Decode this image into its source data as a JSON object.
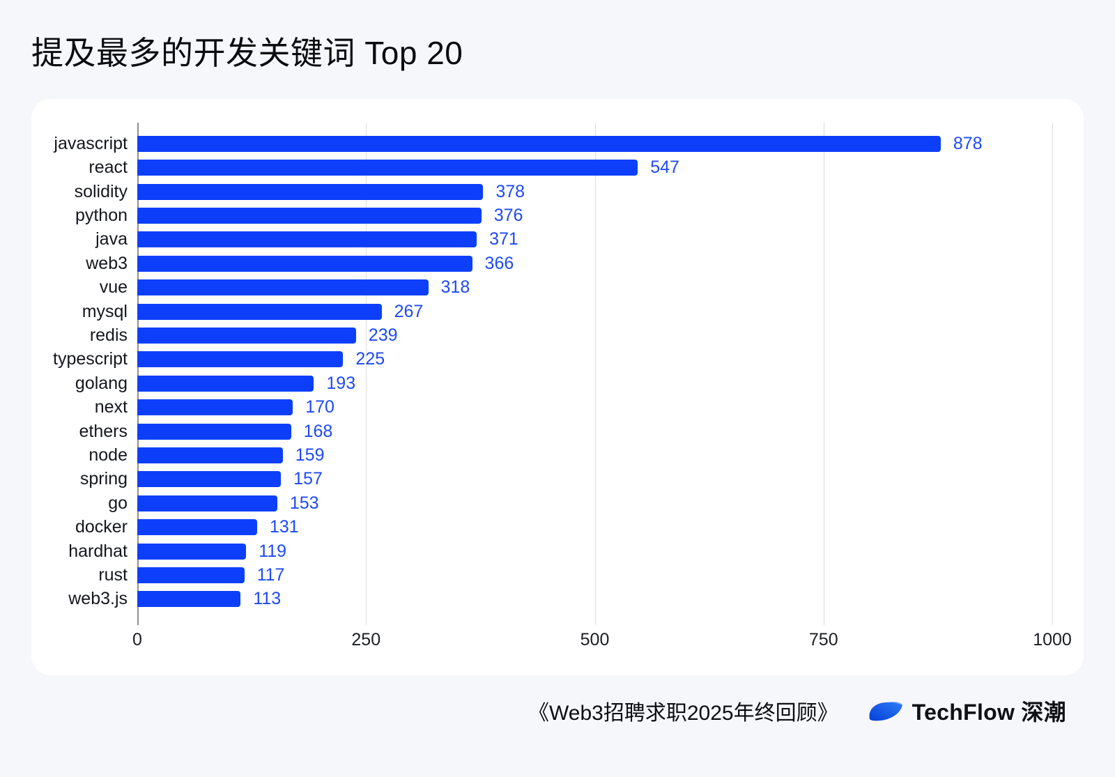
{
  "title": "提及最多的开发关键词 Top 20",
  "chart_data": {
    "type": "bar",
    "orientation": "horizontal",
    "title": "提及最多的开发关键词 Top 20",
    "categories": [
      "javascript",
      "react",
      "solidity",
      "python",
      "java",
      "web3",
      "vue",
      "mysql",
      "redis",
      "typescript",
      "golang",
      "next",
      "ethers",
      "node",
      "spring",
      "go",
      "docker",
      "hardhat",
      "rust",
      "web3.js"
    ],
    "values": [
      878,
      547,
      378,
      376,
      371,
      366,
      318,
      267,
      239,
      225,
      193,
      170,
      168,
      159,
      157,
      153,
      131,
      119,
      117,
      113
    ],
    "xlim": [
      0,
      1000
    ],
    "x_ticks": [
      0,
      250,
      500,
      750,
      1000
    ],
    "grid": "vertical",
    "value_labels": "end-of-bar",
    "legend": "none"
  },
  "colors": {
    "background": "#f6f7fb",
    "card": "#ffffff",
    "bar": "#0d3ffa",
    "value_label": "#1e49f5",
    "gridline": "#dcdcdc",
    "axis_line": "#8f8f8f"
  },
  "footer": {
    "source": "《Web3招聘求职2025年终回顾》",
    "brand": "TechFlow 深潮"
  }
}
